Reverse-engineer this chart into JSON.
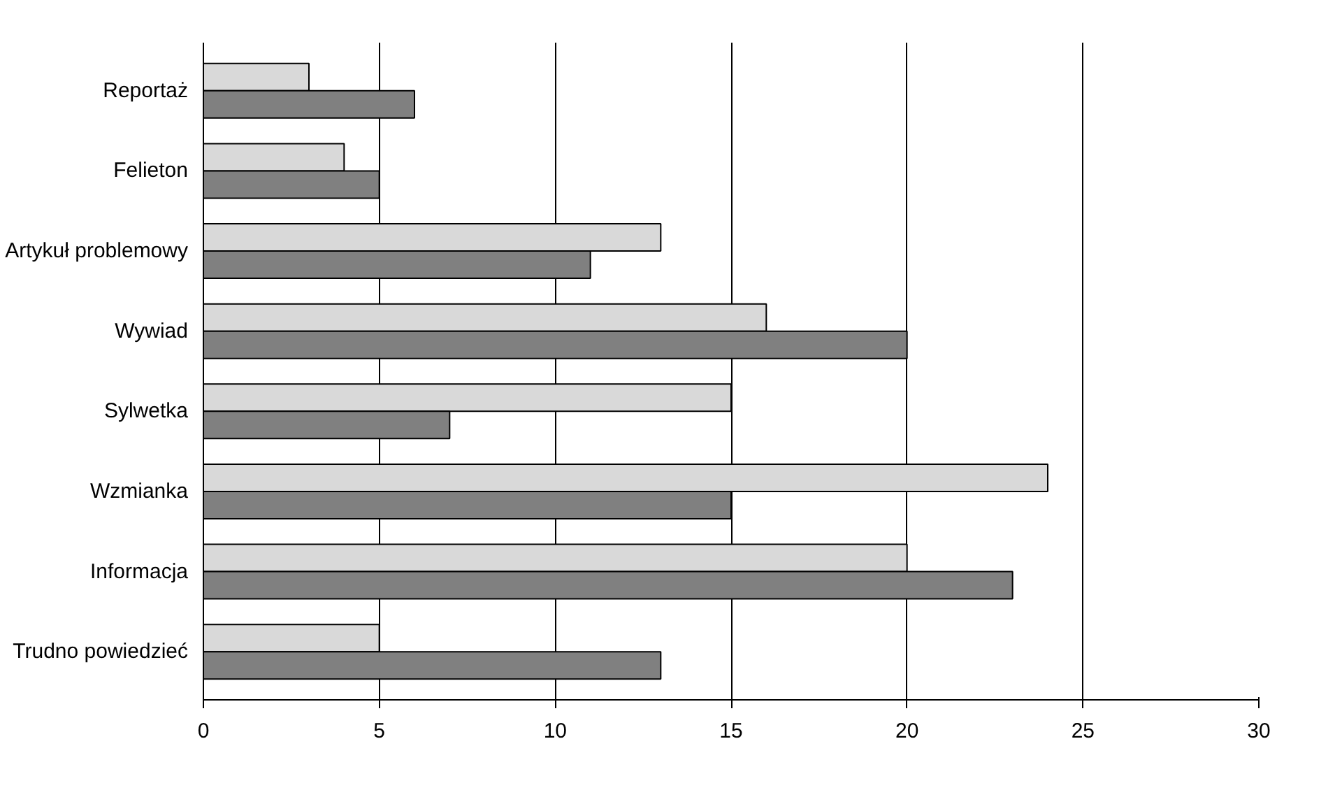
{
  "chart_data": {
    "type": "bar",
    "orientation": "horizontal",
    "categories": [
      "Reportaż",
      "Felieton",
      "Artykuł problemowy",
      "Wywiad",
      "Sylwetka",
      "Wzmianka",
      "Informacja",
      "Trudno powiedzieć"
    ],
    "series": [
      {
        "color": "#d9d9d9",
        "values": [
          3,
          4,
          13,
          16,
          15,
          24,
          20,
          5
        ]
      },
      {
        "color": "#808080",
        "values": [
          6,
          5,
          11,
          20,
          7,
          15,
          23,
          13
        ]
      }
    ],
    "xlim": [
      0,
      30
    ],
    "xticks": [
      0,
      5,
      10,
      15,
      20,
      25,
      30
    ],
    "grid": "x"
  }
}
